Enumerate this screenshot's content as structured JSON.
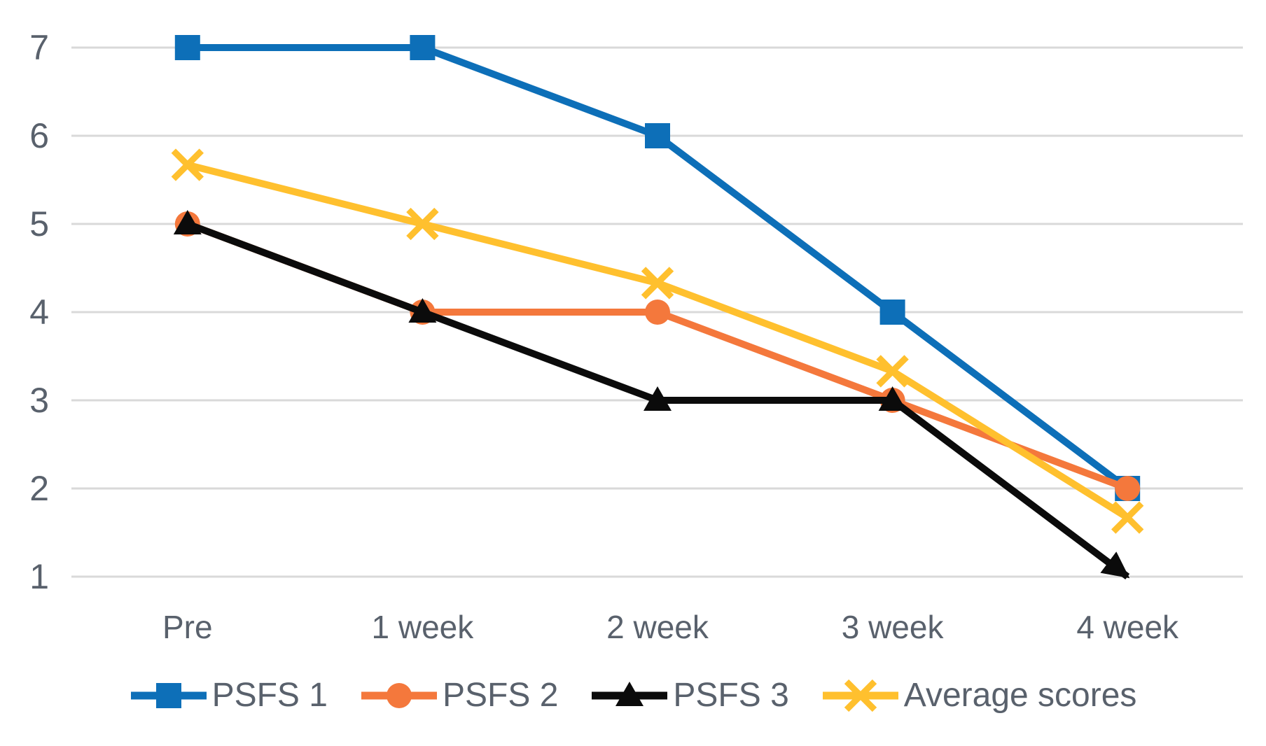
{
  "chart_data": {
    "type": "line",
    "title": "",
    "xlabel": "",
    "ylabel": "",
    "categories": [
      "Pre",
      "1 week",
      "2 week",
      "3 week",
      "4 week"
    ],
    "series": [
      {
        "name": "PSFS 1",
        "marker": "square",
        "color": "#0D6FB8",
        "values": [
          7,
          7,
          6,
          4,
          2
        ],
        "end_arrow": false
      },
      {
        "name": "PSFS 2",
        "marker": "circle",
        "color": "#F4783C",
        "values": [
          5,
          4,
          4,
          3,
          2
        ],
        "end_arrow": false
      },
      {
        "name": "PSFS 3",
        "marker": "triangle",
        "color": "#0B0B0B",
        "values": [
          5,
          4,
          3,
          3,
          1
        ],
        "end_arrow": true
      },
      {
        "name": "Average scores",
        "marker": "x",
        "color": "#FFC02E",
        "values": [
          5.67,
          5,
          4.33,
          3.33,
          1.67
        ],
        "end_arrow": false
      }
    ],
    "ylim": [
      1,
      7
    ],
    "yticks": [
      1,
      2,
      3,
      4,
      5,
      6,
      7
    ],
    "grid": "horizontal",
    "legend_position": "bottom",
    "colors": {
      "gridline": "#D9D9D9",
      "label_text": "#59616C",
      "background": "#FFFFFF"
    }
  }
}
